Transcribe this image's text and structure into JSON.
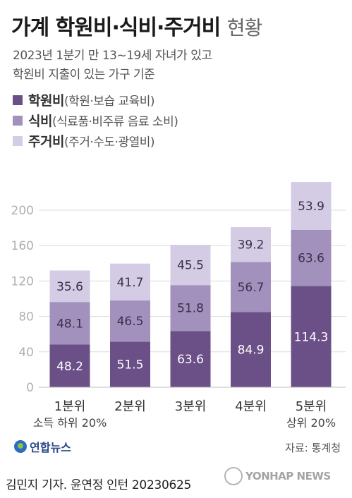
{
  "header": {
    "title_bold": "가계 학원비·식비·주거비",
    "title_light": "현황",
    "subtitle_line1": "2023년 1분기 만 13~19세 자녀가 있고",
    "subtitle_line2": "학원비 지출이 있는 가구 기준"
  },
  "legend": [
    {
      "name": "학원비",
      "desc": "(학원·보습 교육비)",
      "color": "#6b5088"
    },
    {
      "name": "식비",
      "desc": "(식료품·비주류 음료 소비)",
      "color": "#a291bd"
    },
    {
      "name": "주거비",
      "desc": "(주거·수도·광열비)",
      "color": "#d4cce4"
    }
  ],
  "chart_data": {
    "type": "bar",
    "stacked": true,
    "categories": [
      "1분위",
      "2분위",
      "3분위",
      "4분위",
      "5분위"
    ],
    "category_notes": [
      "소득 하위 20%",
      "",
      "",
      "",
      "상위 20%"
    ],
    "series": [
      {
        "name": "학원비",
        "values": [
          48.2,
          51.5,
          63.6,
          84.9,
          114.3
        ],
        "color": "#6b5088"
      },
      {
        "name": "식비",
        "values": [
          48.1,
          46.5,
          51.8,
          56.7,
          63.6
        ],
        "color": "#a291bd"
      },
      {
        "name": "주거비",
        "values": [
          35.6,
          41.7,
          45.5,
          39.2,
          53.9
        ],
        "color": "#d4cce4"
      }
    ],
    "yticks": [
      0,
      40,
      80,
      120,
      160,
      200
    ],
    "ylim": [
      0,
      240
    ],
    "grid": true,
    "legend_position": "top-left"
  },
  "footer": {
    "logo_text": "연합뉴스",
    "source": "자료: 통계청",
    "credit": "김민지 기자. 윤연정 인턴  20230625",
    "watermark": "YONHAP NEWS"
  }
}
